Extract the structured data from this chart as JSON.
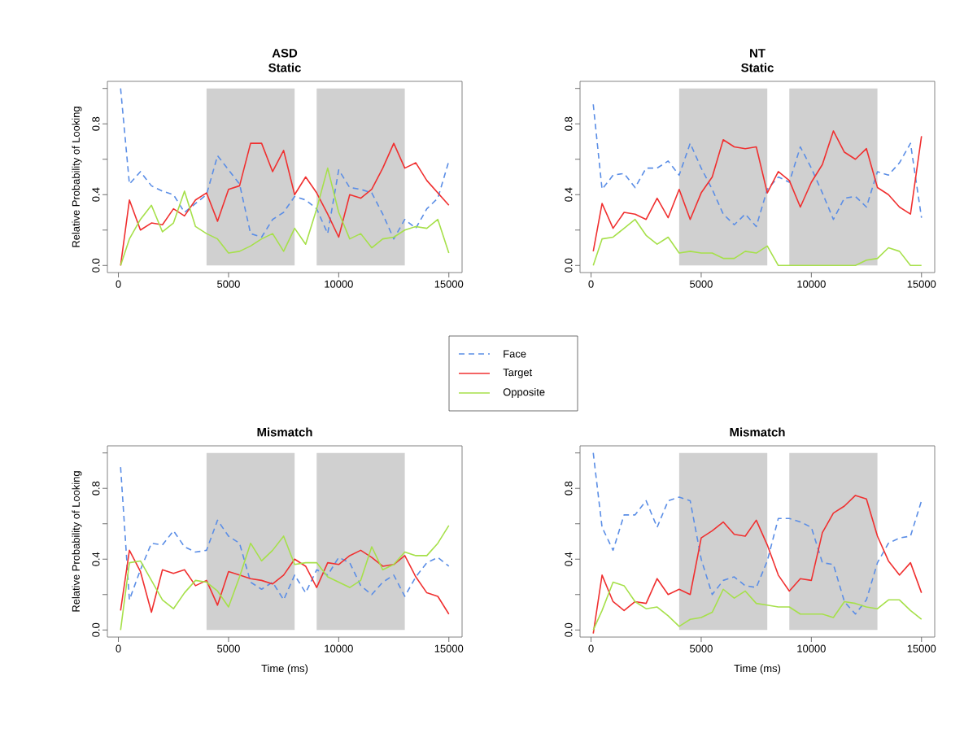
{
  "chart_data": [
    {
      "type": "line",
      "title": "ASD",
      "subtitle": "Static",
      "ylabel": "Relative Probability of Looking",
      "legend": "bottom right",
      "xlim": [
        -500,
        15600
      ],
      "ylim": [
        -0.04,
        1.04
      ],
      "xticks": [
        0,
        5000,
        10000,
        15000
      ],
      "yticks": [
        {
          "value": 0,
          "label": "0.0"
        },
        {
          "value": 0.2,
          "label": null
        },
        {
          "value": 0.4,
          "label": "0.4"
        },
        {
          "value": 0.6,
          "label": null
        },
        {
          "value": 0.8,
          "label": "0.8"
        },
        {
          "value": 1.0,
          "label": null
        }
      ],
      "bands": [
        {
          "axis": "x",
          "from": 4000,
          "to": 8000,
          "color": "#d0d0d0"
        },
        {
          "axis": "x",
          "from": 9000,
          "to": 13000,
          "color": "#d0d0d0"
        }
      ],
      "x": [
        100,
        500,
        1000,
        1500,
        2000,
        2500,
        3000,
        3500,
        4000,
        4500,
        5000,
        5500,
        6000,
        6500,
        7000,
        7500,
        8000,
        8500,
        9000,
        9500,
        10000,
        10500,
        11000,
        11500,
        12000,
        12500,
        13000,
        13500,
        14000,
        14500,
        15000
      ],
      "series": [
        {
          "name": "Face",
          "color": "#5b8ee6",
          "line_style": "dashed",
          "values": [
            1.0,
            0.46,
            0.53,
            0.45,
            0.42,
            0.4,
            0.3,
            0.35,
            0.4,
            0.62,
            0.54,
            0.46,
            0.18,
            0.16,
            0.26,
            0.3,
            0.39,
            0.37,
            0.32,
            0.18,
            0.54,
            0.44,
            0.43,
            0.41,
            0.29,
            0.15,
            0.26,
            0.21,
            0.32,
            0.38,
            0.59
          ]
        },
        {
          "name": "Target",
          "color": "#f03030",
          "line_style": "solid",
          "values": [
            0.0,
            0.37,
            0.2,
            0.24,
            0.23,
            0.32,
            0.28,
            0.37,
            0.41,
            0.25,
            0.43,
            0.45,
            0.69,
            0.69,
            0.53,
            0.65,
            0.4,
            0.5,
            0.41,
            0.29,
            0.16,
            0.4,
            0.38,
            0.43,
            0.55,
            0.69,
            0.55,
            0.58,
            0.48,
            0.41,
            0.34
          ]
        },
        {
          "name": "Opposite",
          "color": "#a6e04a",
          "line_style": "solid",
          "values": [
            0.0,
            0.15,
            0.26,
            0.34,
            0.19,
            0.24,
            0.42,
            0.22,
            0.18,
            0.15,
            0.07,
            0.08,
            0.11,
            0.15,
            0.18,
            0.08,
            0.21,
            0.12,
            0.32,
            0.55,
            0.3,
            0.15,
            0.18,
            0.1,
            0.15,
            0.16,
            0.2,
            0.22,
            0.21,
            0.26,
            0.07
          ]
        }
      ]
    },
    {
      "type": "line",
      "title": "NT",
      "subtitle": "Static",
      "xlim": [
        -500,
        15600
      ],
      "ylim": [
        -0.04,
        1.04
      ],
      "xticks": [
        0,
        5000,
        10000,
        15000
      ],
      "yticks": [
        {
          "value": 0,
          "label": "0.0"
        },
        {
          "value": 0.2,
          "label": null
        },
        {
          "value": 0.4,
          "label": "0.4"
        },
        {
          "value": 0.6,
          "label": null
        },
        {
          "value": 0.8,
          "label": "0.8"
        },
        {
          "value": 1.0,
          "label": null
        }
      ],
      "bands": [
        {
          "axis": "x",
          "from": 4000,
          "to": 8000,
          "color": "#d0d0d0"
        },
        {
          "axis": "x",
          "from": 9000,
          "to": 13000,
          "color": "#d0d0d0"
        }
      ],
      "x": [
        100,
        500,
        1000,
        1500,
        2000,
        2500,
        3000,
        3500,
        4000,
        4500,
        5000,
        5500,
        6000,
        6500,
        7000,
        7500,
        8000,
        8500,
        9000,
        9500,
        10000,
        10500,
        11000,
        11500,
        12000,
        12500,
        13000,
        13500,
        14000,
        14500,
        15000
      ],
      "series": [
        {
          "color": "#5b8ee6",
          "line_style": "dashed",
          "values": [
            0.91,
            0.43,
            0.51,
            0.52,
            0.44,
            0.55,
            0.55,
            0.59,
            0.51,
            0.69,
            0.55,
            0.43,
            0.29,
            0.23,
            0.29,
            0.22,
            0.43,
            0.5,
            0.47,
            0.67,
            0.55,
            0.41,
            0.26,
            0.38,
            0.39,
            0.33,
            0.53,
            0.51,
            0.58,
            0.69,
            0.27
          ]
        },
        {
          "color": "#f03030",
          "line_style": "solid",
          "values": [
            0.08,
            0.35,
            0.21,
            0.3,
            0.29,
            0.26,
            0.38,
            0.27,
            0.43,
            0.26,
            0.41,
            0.5,
            0.71,
            0.67,
            0.66,
            0.67,
            0.41,
            0.53,
            0.48,
            0.33,
            0.47,
            0.57,
            0.76,
            0.64,
            0.6,
            0.66,
            0.44,
            0.4,
            0.33,
            0.29,
            0.73
          ]
        },
        {
          "color": "#a6e04a",
          "line_style": "solid",
          "values": [
            0.0,
            0.15,
            0.16,
            0.21,
            0.26,
            0.17,
            0.12,
            0.16,
            0.07,
            0.08,
            0.07,
            0.07,
            0.04,
            0.04,
            0.08,
            0.07,
            0.11,
            0.0,
            0.0,
            0.0,
            0.0,
            0.0,
            0.0,
            0.0,
            0.0,
            0.03,
            0.04,
            0.1,
            0.08,
            0.0,
            0.0
          ]
        }
      ]
    },
    {
      "type": "line",
      "title": "Mismatch",
      "ylabel": "Relative Probability of Looking",
      "xlabel": "Time (ms)",
      "xlim": [
        -500,
        15600
      ],
      "ylim": [
        -0.04,
        1.04
      ],
      "xticks": [
        0,
        5000,
        10000,
        15000
      ],
      "yticks": [
        {
          "value": 0,
          "label": "0.0"
        },
        {
          "value": 0.2,
          "label": null
        },
        {
          "value": 0.4,
          "label": "0.4"
        },
        {
          "value": 0.6,
          "label": null
        },
        {
          "value": 0.8,
          "label": "0.8"
        },
        {
          "value": 1.0,
          "label": null
        }
      ],
      "bands": [
        {
          "axis": "x",
          "from": 4000,
          "to": 8000,
          "color": "#d0d0d0"
        },
        {
          "axis": "x",
          "from": 9000,
          "to": 13000,
          "color": "#d0d0d0"
        }
      ],
      "x": [
        100,
        500,
        1000,
        1500,
        2000,
        2500,
        3000,
        3500,
        4000,
        4500,
        5000,
        5500,
        6000,
        6500,
        7000,
        7500,
        8000,
        8500,
        9000,
        9500,
        10000,
        10500,
        11000,
        11500,
        12000,
        12500,
        13000,
        13500,
        14000,
        14500,
        15000
      ],
      "series": [
        {
          "color": "#5b8ee6",
          "line_style": "dashed",
          "values": [
            0.92,
            0.17,
            0.34,
            0.49,
            0.48,
            0.56,
            0.47,
            0.44,
            0.45,
            0.62,
            0.53,
            0.49,
            0.27,
            0.23,
            0.27,
            0.17,
            0.31,
            0.21,
            0.34,
            0.31,
            0.41,
            0.38,
            0.25,
            0.2,
            0.27,
            0.31,
            0.19,
            0.3,
            0.38,
            0.41,
            0.36
          ]
        },
        {
          "color": "#f03030",
          "line_style": "solid",
          "values": [
            0.11,
            0.45,
            0.33,
            0.1,
            0.34,
            0.32,
            0.34,
            0.25,
            0.28,
            0.14,
            0.33,
            0.31,
            0.29,
            0.28,
            0.26,
            0.31,
            0.4,
            0.36,
            0.24,
            0.38,
            0.37,
            0.42,
            0.45,
            0.41,
            0.36,
            0.37,
            0.42,
            0.3,
            0.21,
            0.19,
            0.09
          ]
        },
        {
          "color": "#a6e04a",
          "line_style": "solid",
          "values": [
            0.0,
            0.38,
            0.39,
            0.28,
            0.17,
            0.12,
            0.21,
            0.28,
            0.27,
            0.22,
            0.13,
            0.3,
            0.49,
            0.39,
            0.45,
            0.53,
            0.37,
            0.38,
            0.38,
            0.3,
            0.27,
            0.24,
            0.28,
            0.47,
            0.34,
            0.37,
            0.44,
            0.42,
            0.42,
            0.49,
            0.59
          ]
        }
      ]
    },
    {
      "type": "line",
      "title": "Mismatch",
      "xlabel": "Time (ms)",
      "xlim": [
        -500,
        15600
      ],
      "ylim": [
        -0.04,
        1.04
      ],
      "xticks": [
        0,
        5000,
        10000,
        15000
      ],
      "yticks": [
        {
          "value": 0,
          "label": "0.0"
        },
        {
          "value": 0.2,
          "label": null
        },
        {
          "value": 0.4,
          "label": "0.4"
        },
        {
          "value": 0.6,
          "label": null
        },
        {
          "value": 0.8,
          "label": "0.8"
        },
        {
          "value": 1.0,
          "label": null
        }
      ],
      "bands": [
        {
          "axis": "x",
          "from": 4000,
          "to": 8000,
          "color": "#d0d0d0"
        },
        {
          "axis": "x",
          "from": 9000,
          "to": 13000,
          "color": "#d0d0d0"
        }
      ],
      "x": [
        100,
        500,
        1000,
        1500,
        2000,
        2500,
        3000,
        3500,
        4000,
        4500,
        5000,
        5500,
        6000,
        6500,
        7000,
        7500,
        8000,
        8500,
        9000,
        9500,
        10000,
        10500,
        11000,
        11500,
        12000,
        12500,
        13000,
        13500,
        14000,
        14500,
        15000
      ],
      "series": [
        {
          "color": "#5b8ee6",
          "line_style": "dashed",
          "values": [
            1.0,
            0.58,
            0.45,
            0.65,
            0.65,
            0.73,
            0.58,
            0.73,
            0.75,
            0.73,
            0.4,
            0.2,
            0.28,
            0.3,
            0.25,
            0.24,
            0.39,
            0.63,
            0.63,
            0.61,
            0.58,
            0.38,
            0.37,
            0.16,
            0.09,
            0.17,
            0.38,
            0.49,
            0.52,
            0.53,
            0.73
          ]
        },
        {
          "color": "#f03030",
          "line_style": "solid",
          "values": [
            -0.02,
            0.31,
            0.16,
            0.11,
            0.16,
            0.15,
            0.29,
            0.2,
            0.23,
            0.2,
            0.52,
            0.56,
            0.61,
            0.54,
            0.53,
            0.62,
            0.48,
            0.31,
            0.22,
            0.29,
            0.28,
            0.55,
            0.66,
            0.7,
            0.76,
            0.74,
            0.53,
            0.39,
            0.31,
            0.38,
            0.21
          ]
        },
        {
          "color": "#a6e04a",
          "line_style": "solid",
          "values": [
            0.0,
            0.11,
            0.27,
            0.25,
            0.16,
            0.12,
            0.13,
            0.08,
            0.02,
            0.06,
            0.07,
            0.1,
            0.23,
            0.18,
            0.22,
            0.15,
            0.14,
            0.13,
            0.13,
            0.09,
            0.09,
            0.09,
            0.07,
            0.16,
            0.15,
            0.13,
            0.12,
            0.17,
            0.17,
            0.11,
            0.06
          ]
        }
      ]
    }
  ]
}
